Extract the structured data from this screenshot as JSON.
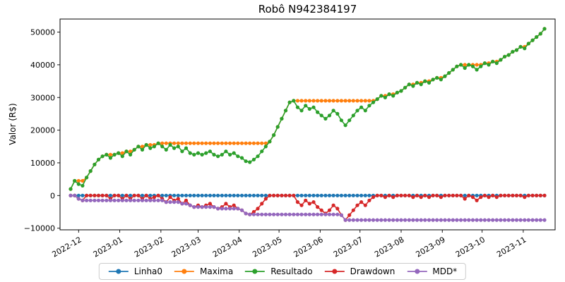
{
  "chart_data": {
    "type": "line",
    "title": "Robô N942384197",
    "xlabel": "",
    "ylabel": "Valor (R$)",
    "grid": false,
    "legend_position": "bottom",
    "marker": "o",
    "x_unit": "days since 2022-11-25",
    "xlim": [
      -8,
      365
    ],
    "ylim": [
      -10500,
      54000
    ],
    "x_ticks": [
      {
        "pos": 6,
        "label": "2022-12"
      },
      {
        "pos": 37,
        "label": "2023-01"
      },
      {
        "pos": 68,
        "label": "2023-02"
      },
      {
        "pos": 96,
        "label": "2023-03"
      },
      {
        "pos": 127,
        "label": "2023-04"
      },
      {
        "pos": 157,
        "label": "2023-05"
      },
      {
        "pos": 188,
        "label": "2023-06"
      },
      {
        "pos": 218,
        "label": "2023-07"
      },
      {
        "pos": 249,
        "label": "2023-08"
      },
      {
        "pos": 280,
        "label": "2023-09"
      },
      {
        "pos": 310,
        "label": "2023-10"
      },
      {
        "pos": 341,
        "label": "2023-11"
      }
    ],
    "y_ticks": [
      {
        "pos": -10000,
        "label": "−10000"
      },
      {
        "pos": 0,
        "label": "0"
      },
      {
        "pos": 10000,
        "label": "10000"
      },
      {
        "pos": 20000,
        "label": "20000"
      },
      {
        "pos": 30000,
        "label": "30000"
      },
      {
        "pos": 40000,
        "label": "40000"
      },
      {
        "pos": 50000,
        "label": "50000"
      }
    ],
    "x": [
      0,
      3,
      6,
      9,
      12,
      15,
      18,
      21,
      24,
      27,
      30,
      33,
      36,
      39,
      42,
      45,
      48,
      51,
      54,
      57,
      60,
      63,
      66,
      69,
      72,
      75,
      78,
      81,
      84,
      87,
      90,
      93,
      96,
      99,
      102,
      105,
      108,
      111,
      114,
      117,
      120,
      123,
      126,
      129,
      132,
      135,
      138,
      141,
      144,
      147,
      150,
      153,
      156,
      159,
      162,
      165,
      168,
      171,
      174,
      177,
      180,
      183,
      186,
      189,
      192,
      195,
      198,
      201,
      204,
      207,
      210,
      213,
      216,
      219,
      222,
      225,
      228,
      231,
      234,
      237,
      240,
      243,
      246,
      249,
      252,
      255,
      258,
      261,
      264,
      267,
      270,
      273,
      276,
      279,
      282,
      285,
      288,
      291,
      294,
      297,
      300,
      303,
      306,
      309,
      312,
      315,
      318,
      321,
      324,
      327,
      330,
      333,
      336,
      339,
      342,
      345,
      348,
      351,
      354,
      357
    ],
    "series": [
      {
        "name": "Linha0",
        "color": "#1f77b4",
        "values": [
          0,
          0,
          0,
          0,
          0,
          0,
          0,
          0,
          0,
          0,
          0,
          0,
          0,
          0,
          0,
          0,
          0,
          0,
          0,
          0,
          0,
          0,
          0,
          0,
          0,
          0,
          0,
          0,
          0,
          0,
          0,
          0,
          0,
          0,
          0,
          0,
          0,
          0,
          0,
          0,
          0,
          0,
          0,
          0,
          0,
          0,
          0,
          0,
          0,
          0,
          0,
          0,
          0,
          0,
          0,
          0,
          0,
          0,
          0,
          0,
          0,
          0,
          0,
          0,
          0,
          0,
          0,
          0,
          0,
          0,
          0,
          0,
          0,
          0,
          0,
          0,
          0,
          0,
          0,
          0,
          0,
          0,
          0,
          0,
          0,
          0,
          0,
          0,
          0,
          0,
          0,
          0,
          0,
          0,
          0,
          0,
          0,
          0,
          0,
          0,
          0,
          0,
          0,
          0,
          0,
          0,
          0,
          0,
          0,
          0,
          0,
          0,
          0,
          0,
          0,
          0,
          0,
          0,
          0,
          0
        ]
      },
      {
        "name": "Maxima",
        "color": "#ff7f0e",
        "values": [
          2000,
          4500,
          4500,
          4500,
          5500,
          7500,
          9500,
          11000,
          12000,
          12500,
          12500,
          12500,
          13000,
          13000,
          13500,
          13500,
          14000,
          15000,
          15000,
          15500,
          15500,
          15500,
          16000,
          16000,
          16000,
          16000,
          16000,
          16000,
          16000,
          16000,
          16000,
          16000,
          16000,
          16000,
          16000,
          16000,
          16000,
          16000,
          16000,
          16000,
          16000,
          16000,
          16000,
          16000,
          16000,
          16000,
          16000,
          16000,
          16000,
          16000,
          16500,
          18500,
          21000,
          23500,
          26000,
          28500,
          29000,
          29000,
          29000,
          29000,
          29000,
          29000,
          29000,
          29000,
          29000,
          29000,
          29000,
          29000,
          29000,
          29000,
          29000,
          29000,
          29000,
          29000,
          29000,
          29000,
          29000,
          29500,
          30500,
          30500,
          31000,
          31000,
          31500,
          32000,
          33000,
          34000,
          34000,
          34500,
          34500,
          35000,
          35000,
          35500,
          36000,
          36000,
          36500,
          37500,
          38500,
          39500,
          40000,
          40000,
          40000,
          40000,
          40000,
          40000,
          40500,
          40500,
          41000,
          41000,
          41500,
          42500,
          43000,
          44000,
          44500,
          45500,
          45500,
          46500,
          47500,
          48500,
          49500,
          51000
        ]
      },
      {
        "name": "Resultado",
        "color": "#2ca02c",
        "values": [
          2000,
          4500,
          3500,
          3000,
          5500,
          7500,
          9500,
          11000,
          12000,
          12500,
          11500,
          12500,
          13000,
          12000,
          13500,
          12500,
          14000,
          15000,
          14000,
          15500,
          14500,
          15000,
          16000,
          15000,
          14000,
          15500,
          14500,
          15000,
          13500,
          14500,
          13000,
          12500,
          13000,
          12500,
          13000,
          13500,
          12500,
          12000,
          12500,
          13500,
          12500,
          13000,
          12000,
          11500,
          10500,
          10200,
          11000,
          12000,
          13500,
          15000,
          16500,
          18500,
          21000,
          23500,
          26000,
          28500,
          29000,
          27000,
          26000,
          27500,
          26500,
          27000,
          25500,
          24500,
          23500,
          24500,
          26000,
          25000,
          23000,
          21500,
          23000,
          24500,
          26000,
          27000,
          26000,
          27500,
          28500,
          29500,
          30500,
          30000,
          31000,
          30500,
          31500,
          32000,
          33000,
          34000,
          33500,
          34500,
          34000,
          35000,
          34500,
          35500,
          36000,
          35500,
          36500,
          37500,
          38500,
          39500,
          40000,
          39000,
          40000,
          39500,
          38500,
          39500,
          40500,
          40000,
          41000,
          40500,
          41500,
          42500,
          43000,
          44000,
          44500,
          45500,
          45000,
          46500,
          47500,
          48500,
          49500,
          51000
        ]
      },
      {
        "name": "Drawdown",
        "color": "#d62728",
        "values": [
          0,
          0,
          -1000,
          -1500,
          0,
          0,
          0,
          0,
          0,
          0,
          -1000,
          0,
          0,
          -1000,
          0,
          -1000,
          0,
          0,
          -1000,
          0,
          -1000,
          -500,
          0,
          -1000,
          -2000,
          -500,
          -1500,
          -1000,
          -2500,
          -1500,
          -3000,
          -3500,
          -3000,
          -3500,
          -3000,
          -2500,
          -3500,
          -4000,
          -3500,
          -2500,
          -3500,
          -3000,
          -4000,
          -4500,
          -5500,
          -5800,
          -5000,
          -4000,
          -2500,
          -1000,
          0,
          0,
          0,
          0,
          0,
          0,
          0,
          -2000,
          -3000,
          -1500,
          -2500,
          -2000,
          -3500,
          -4500,
          -5500,
          -4500,
          -3000,
          -4000,
          -6000,
          -7500,
          -6000,
          -4500,
          -3000,
          -2000,
          -3000,
          -1500,
          -500,
          0,
          0,
          -500,
          0,
          -500,
          0,
          0,
          0,
          0,
          -500,
          0,
          -500,
          0,
          -500,
          0,
          0,
          -500,
          0,
          0,
          0,
          0,
          0,
          -1000,
          0,
          -500,
          -1500,
          -500,
          0,
          -500,
          0,
          -500,
          0,
          0,
          0,
          0,
          0,
          0,
          -500,
          0,
          0,
          0,
          0,
          0
        ]
      },
      {
        "name": "MDD*",
        "color": "#9467bd",
        "values": [
          0,
          0,
          -1000,
          -1500,
          -1500,
          -1500,
          -1500,
          -1500,
          -1500,
          -1500,
          -1500,
          -1500,
          -1500,
          -1500,
          -1500,
          -1500,
          -1500,
          -1500,
          -1500,
          -1500,
          -1500,
          -1500,
          -1500,
          -1500,
          -2000,
          -2000,
          -2000,
          -2000,
          -2500,
          -2500,
          -3000,
          -3500,
          -3500,
          -3500,
          -3500,
          -3500,
          -3500,
          -4000,
          -4000,
          -4000,
          -4000,
          -4000,
          -4000,
          -4500,
          -5500,
          -5800,
          -5800,
          -5800,
          -5800,
          -5800,
          -5800,
          -5800,
          -5800,
          -5800,
          -5800,
          -5800,
          -5800,
          -5800,
          -5800,
          -5800,
          -5800,
          -5800,
          -5800,
          -5800,
          -5800,
          -5800,
          -5800,
          -5800,
          -6000,
          -7500,
          -7500,
          -7500,
          -7500,
          -7500,
          -7500,
          -7500,
          -7500,
          -7500,
          -7500,
          -7500,
          -7500,
          -7500,
          -7500,
          -7500,
          -7500,
          -7500,
          -7500,
          -7500,
          -7500,
          -7500,
          -7500,
          -7500,
          -7500,
          -7500,
          -7500,
          -7500,
          -7500,
          -7500,
          -7500,
          -7500,
          -7500,
          -7500,
          -7500,
          -7500,
          -7500,
          -7500,
          -7500,
          -7500,
          -7500,
          -7500,
          -7500,
          -7500,
          -7500,
          -7500,
          -7500,
          -7500,
          -7500,
          -7500,
          -7500,
          -7500
        ]
      }
    ]
  }
}
